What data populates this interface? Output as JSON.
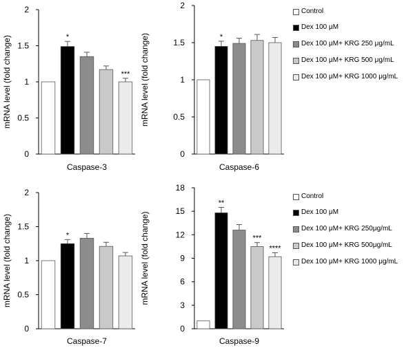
{
  "chart_data": [
    {
      "type": "bar",
      "xlabel": "Caspase-3",
      "ylabel": "mRNA level  (fold change)",
      "ylim": [
        0,
        2
      ],
      "yticks": [
        "0",
        "0.5",
        "1",
        "1.5",
        "2"
      ],
      "values": [
        1.0,
        1.49,
        1.35,
        1.17,
        1.0
      ],
      "errors": [
        0,
        0.07,
        0.06,
        0.05,
        0.05
      ],
      "annotations": [
        "",
        "*",
        "",
        "",
        "***"
      ]
    },
    {
      "type": "bar",
      "xlabel": "Caspase-6",
      "ylabel": "mRNA level  (fold change)",
      "ylim": [
        0,
        2
      ],
      "yticks": [
        "0",
        "0.5",
        "1",
        "1.5",
        "2"
      ],
      "values": [
        1.0,
        1.45,
        1.49,
        1.53,
        1.5
      ],
      "errors": [
        0,
        0.07,
        0.07,
        0.08,
        0.07
      ],
      "annotations": [
        "",
        "*",
        "",
        "",
        ""
      ]
    },
    {
      "type": "bar",
      "xlabel": "Caspase-7",
      "ylabel": "mRNA level  (fold change)",
      "ylim": [
        0,
        2
      ],
      "yticks": [
        "0",
        "0.5",
        "1",
        "1.5",
        "2"
      ],
      "values": [
        1.0,
        1.25,
        1.33,
        1.21,
        1.07
      ],
      "errors": [
        0,
        0.06,
        0.07,
        0.06,
        0.05
      ],
      "annotations": [
        "",
        "*",
        "",
        "",
        ""
      ]
    },
    {
      "type": "bar",
      "xlabel": "Caspase-9",
      "ylabel": "mRNA level  (fold change)",
      "ylim": [
        0,
        18
      ],
      "yticks": [
        "0",
        "3",
        "6",
        "9",
        "12",
        "15",
        "18"
      ],
      "values": [
        1.0,
        14.8,
        12.6,
        10.5,
        9.2
      ],
      "errors": [
        0,
        0.7,
        0.7,
        0.5,
        0.5
      ],
      "annotations": [
        "",
        "**",
        "",
        "***",
        "****"
      ]
    }
  ],
  "series_colors": [
    "#ffffff",
    "#000000",
    "#8c8c8c",
    "#c9c9c9",
    "#ebebeb"
  ],
  "legends": [
    {
      "items": [
        {
          "label": "Control",
          "color": "#ffffff"
        },
        {
          "label": "Dex 100 μM",
          "color": "#000000"
        },
        {
          "label": "Dex 100 μM+  KRG  250 μg/mL",
          "color": "#8c8c8c"
        },
        {
          "label": "Dex 100 μM+  KRG  500 μg/mL",
          "color": "#c9c9c9"
        },
        {
          "label": "Dex 100 μM+  KRG  1000 μg/mL",
          "color": "#ebebeb"
        }
      ]
    },
    {
      "items": [
        {
          "label": "Control",
          "color": "#ffffff"
        },
        {
          "label": "Dex 100 μM",
          "color": "#000000"
        },
        {
          "label": "Dex 100 μM+  KRG 250μg/mL",
          "color": "#8c8c8c"
        },
        {
          "label": "Dex 100 μM+  KRG 500μg/mL",
          "color": "#c9c9c9"
        },
        {
          "label": "Dex 100 μM+  KRG 1000 μg/mL",
          "color": "#ebebeb"
        }
      ]
    }
  ]
}
